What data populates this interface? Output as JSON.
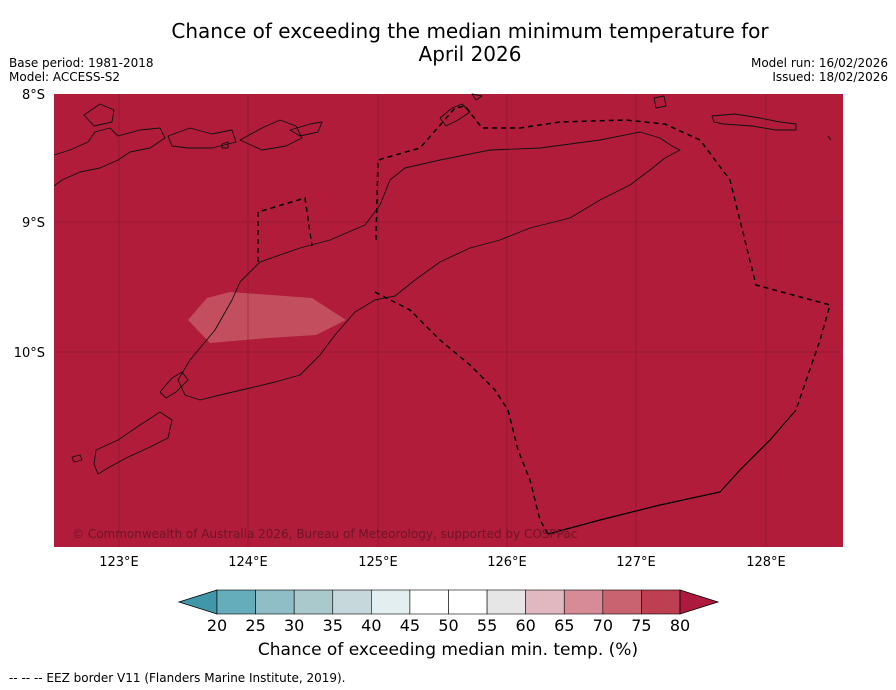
{
  "title": {
    "line1": "Chance of exceeding the median minimum temperature for",
    "line2": "April 2026"
  },
  "meta_left": {
    "base_period": "Base period: 1981-2018",
    "model": "Model: ACCESS-S2"
  },
  "meta_right": {
    "model_run": "Model run: 16/02/2026",
    "issued": "Issued: 18/02/2026"
  },
  "map": {
    "lat_labels": [
      "8°S",
      "9°S",
      "10°S"
    ],
    "lon_labels": [
      "123°E",
      "124°E",
      "125°E",
      "126°E",
      "127°E",
      "128°E"
    ],
    "copyright": "© Commonwealth of Australia 2026, Bureau of Meteorology, supported by COSPPac",
    "fill_color": "#b01c3a",
    "highlight_color": "#c34f5e",
    "dominant_category": "80"
  },
  "colorbar": {
    "ticks": [
      "20",
      "25",
      "30",
      "35",
      "40",
      "45",
      "50",
      "55",
      "60",
      "65",
      "70",
      "75",
      "80"
    ],
    "colors": [
      "#3f97a8",
      "#66adbb",
      "#8fbec7",
      "#a9c9cd",
      "#c6d8dc",
      "#e3eef0",
      "#ffffff",
      "#ffffff",
      "#e6e6e6",
      "#e2b8c0",
      "#d68b97",
      "#c96370",
      "#bf3f52",
      "#ad1a3d"
    ],
    "label": "Chance of exceeding median min. temp. (%)"
  },
  "footer": "--  --  -- EEZ border V11 (Flanders Marine Institute, 2019)."
}
